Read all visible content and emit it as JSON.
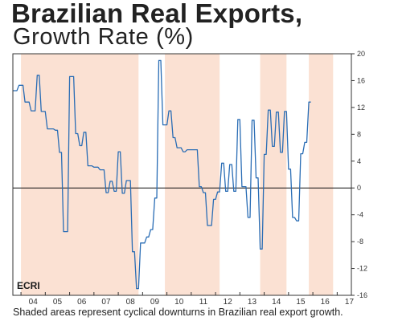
{
  "chart_data": {
    "type": "line",
    "title": "Brazilian Real Exports,",
    "subtitle": "Growth Rate (%)",
    "xlabel": "",
    "ylabel": "",
    "x_tick_labels": [
      "04",
      "05",
      "06",
      "07",
      "08",
      "09",
      "10",
      "11",
      "12",
      "13",
      "14",
      "15",
      "16",
      "17"
    ],
    "y_ticks": [
      20,
      16,
      12,
      8,
      4,
      0,
      -4,
      -8,
      -12,
      -16
    ],
    "ylim": [
      -16,
      20
    ],
    "xlim": [
      "2003-09",
      "2017-08"
    ],
    "y_axis_side": "right",
    "grid": false,
    "zero_line": true,
    "shaded_regions": [
      {
        "start": "2004-01",
        "end": "2008-11"
      },
      {
        "start": "2009-12",
        "end": "2012-03"
      },
      {
        "start": "2013-11",
        "end": "2014-12"
      },
      {
        "start": "2015-11",
        "end": "2016-11"
      }
    ],
    "series": [
      {
        "color": "#2a6db5",
        "points": [
          [
            "2003-09",
            14.5
          ],
          [
            "2003-11",
            14.5
          ],
          [
            "2003-12",
            15.3
          ],
          [
            "2004-02",
            15.3
          ],
          [
            "2004-03",
            12.8
          ],
          [
            "2004-05",
            12.8
          ],
          [
            "2004-06",
            11.5
          ],
          [
            "2004-08",
            11.5
          ],
          [
            "2004-09",
            16.8
          ],
          [
            "2004-10",
            16.8
          ],
          [
            "2004-11",
            11.4
          ],
          [
            "2005-01",
            11.4
          ],
          [
            "2005-02",
            8.8
          ],
          [
            "2005-05",
            8.8
          ],
          [
            "2005-06",
            8.6
          ],
          [
            "2005-07",
            8.6
          ],
          [
            "2005-08",
            5.3
          ],
          [
            "2005-09",
            5.3
          ],
          [
            "2005-10",
            -6.5
          ],
          [
            "2005-12",
            -6.5
          ],
          [
            "2006-01",
            16.6
          ],
          [
            "2006-03",
            16.6
          ],
          [
            "2006-04",
            8.1
          ],
          [
            "2006-05",
            8.1
          ],
          [
            "2006-06",
            6.3
          ],
          [
            "2006-07",
            6.3
          ],
          [
            "2006-08",
            8.3
          ],
          [
            "2006-09",
            8.3
          ],
          [
            "2006-10",
            3.3
          ],
          [
            "2006-12",
            3.3
          ],
          [
            "2007-01",
            3.1
          ],
          [
            "2007-03",
            3.1
          ],
          [
            "2007-04",
            2.7
          ],
          [
            "2007-06",
            2.7
          ],
          [
            "2007-07",
            -0.7
          ],
          [
            "2007-08",
            -0.7
          ],
          [
            "2007-09",
            1.0
          ],
          [
            "2007-10",
            1.0
          ],
          [
            "2007-11",
            -0.5
          ],
          [
            "2007-12",
            -0.5
          ],
          [
            "2008-01",
            5.4
          ],
          [
            "2008-02",
            5.4
          ],
          [
            "2008-03",
            -0.8
          ],
          [
            "2008-04",
            -0.8
          ],
          [
            "2008-05",
            1.1
          ],
          [
            "2008-07",
            1.1
          ],
          [
            "2008-08",
            -9.5
          ],
          [
            "2008-09",
            -9.5
          ],
          [
            "2008-10",
            -15.0
          ],
          [
            "2008-11",
            -15.0
          ],
          [
            "2008-12",
            -8.2
          ],
          [
            "2009-02",
            -8.2
          ],
          [
            "2009-03",
            -7.3
          ],
          [
            "2009-04",
            -7.3
          ],
          [
            "2009-05",
            -6.2
          ],
          [
            "2009-06",
            -6.2
          ],
          [
            "2009-07",
            -1.5
          ],
          [
            "2009-08",
            -1.5
          ],
          [
            "2009-09",
            19.0
          ],
          [
            "2009-10",
            19.0
          ],
          [
            "2009-11",
            9.4
          ],
          [
            "2010-01",
            9.4
          ],
          [
            "2010-02",
            11.5
          ],
          [
            "2010-03",
            11.5
          ],
          [
            "2010-04",
            7.5
          ],
          [
            "2010-05",
            7.5
          ],
          [
            "2010-06",
            6.0
          ],
          [
            "2010-08",
            6.0
          ],
          [
            "2010-09",
            5.4
          ],
          [
            "2010-10",
            5.4
          ],
          [
            "2010-11",
            5.7
          ],
          [
            "2011-04",
            5.7
          ],
          [
            "2011-05",
            0.2
          ],
          [
            "2011-06",
            0.2
          ],
          [
            "2011-07",
            -0.7
          ],
          [
            "2011-08",
            -0.7
          ],
          [
            "2011-09",
            -5.6
          ],
          [
            "2011-11",
            -5.6
          ],
          [
            "2011-12",
            -1.7
          ],
          [
            "2012-01",
            -1.7
          ],
          [
            "2012-02",
            -0.6
          ],
          [
            "2012-03",
            -0.6
          ],
          [
            "2012-04",
            3.7
          ],
          [
            "2012-05",
            3.7
          ],
          [
            "2012-06",
            -0.5
          ],
          [
            "2012-07",
            -0.5
          ],
          [
            "2012-08",
            3.5
          ],
          [
            "2012-09",
            3.5
          ],
          [
            "2012-10",
            -0.5
          ],
          [
            "2012-11",
            -0.5
          ],
          [
            "2012-12",
            10.2
          ],
          [
            "2013-01",
            10.2
          ],
          [
            "2013-02",
            0.2
          ],
          [
            "2013-04",
            0.2
          ],
          [
            "2013-05",
            -4.4
          ],
          [
            "2013-06",
            -4.4
          ],
          [
            "2013-07",
            10.1
          ],
          [
            "2013-08",
            10.1
          ],
          [
            "2013-09",
            1.5
          ],
          [
            "2013-10",
            1.5
          ],
          [
            "2013-11",
            -9.1
          ],
          [
            "2013-12",
            -9.1
          ],
          [
            "2014-01",
            5.0
          ],
          [
            "2014-02",
            5.0
          ],
          [
            "2014-03",
            11.6
          ],
          [
            "2014-04",
            11.6
          ],
          [
            "2014-05",
            6.2
          ],
          [
            "2014-06",
            6.2
          ],
          [
            "2014-07",
            11.3
          ],
          [
            "2014-08",
            11.3
          ],
          [
            "2014-09",
            5.3
          ],
          [
            "2014-10",
            5.3
          ],
          [
            "2014-11",
            11.4
          ],
          [
            "2014-12",
            11.4
          ],
          [
            "2015-01",
            2.8
          ],
          [
            "2015-02",
            2.8
          ],
          [
            "2015-03",
            -4.4
          ],
          [
            "2015-04",
            -4.4
          ],
          [
            "2015-05",
            -4.9
          ],
          [
            "2015-06",
            -4.9
          ],
          [
            "2015-07",
            5.1
          ],
          [
            "2015-08",
            5.1
          ],
          [
            "2015-09",
            6.8
          ],
          [
            "2015-10",
            6.8
          ],
          [
            "2015-11",
            12.8
          ],
          [
            "2015-12",
            12.8
          ]
        ]
      }
    ],
    "footnote": "Shaded areas represent cyclical downturns in Brazilian real export growth.",
    "logo_text": "ECRI",
    "colors": {
      "line": "#2a6db5",
      "shade": "#fbe1d3",
      "zero_line": "#111111",
      "frame": "#333333"
    }
  }
}
